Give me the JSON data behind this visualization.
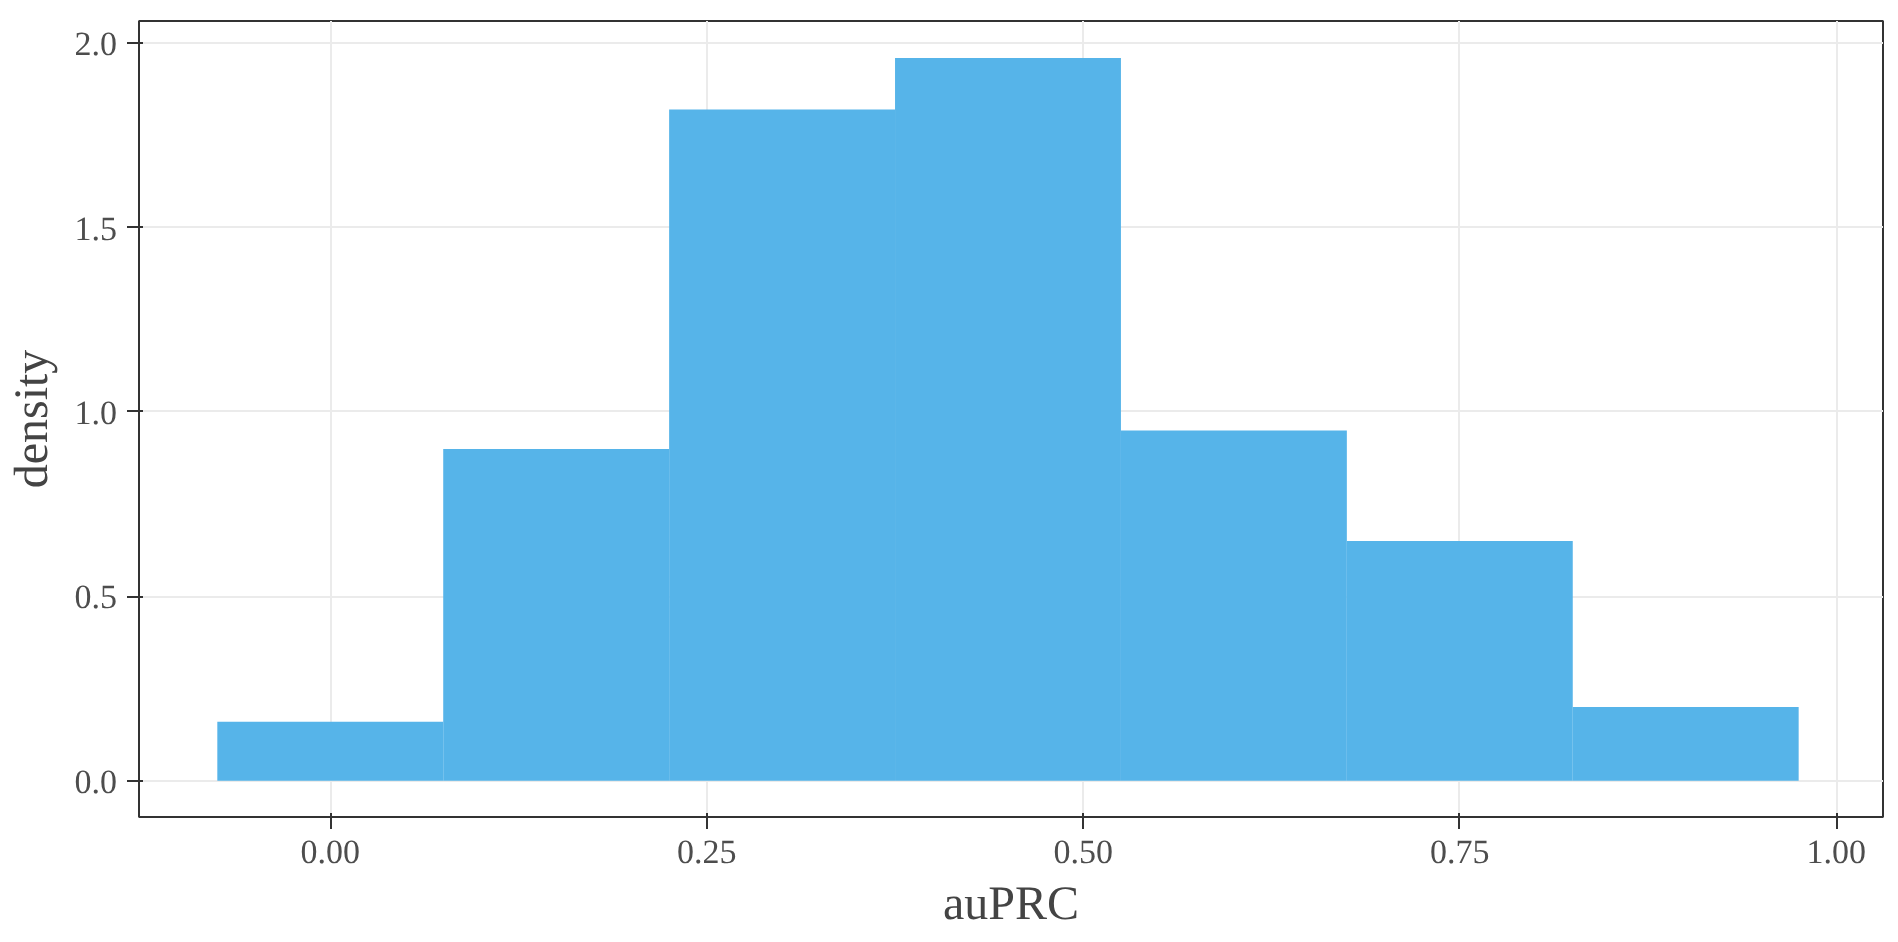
{
  "chart_data": {
    "type": "histogram",
    "xlabel": "auPRC",
    "ylabel": "density",
    "bins": [
      -0.075,
      0.075,
      0.225,
      0.375,
      0.525,
      0.675,
      0.825,
      0.975
    ],
    "values": [
      0.16,
      0.9,
      1.82,
      1.96,
      0.95,
      0.65,
      0.2
    ],
    "color": "#56b4e9",
    "xlim": [
      -0.127,
      1.031
    ],
    "ylim": [
      -0.098,
      2.06
    ],
    "xticks": [
      {
        "value": 0,
        "label": "0.00"
      },
      0.25,
      {
        "value": 0.5,
        "label": "0.50"
      },
      0.75,
      {
        "value": 1,
        "label": "1.00"
      }
    ],
    "yticks": [
      {
        "value": 0,
        "label": "0.0"
      },
      0.5,
      {
        "value": 1,
        "label": "1.0"
      },
      1.5,
      {
        "value": 2,
        "label": "2.0"
      }
    ],
    "grid": true
  }
}
